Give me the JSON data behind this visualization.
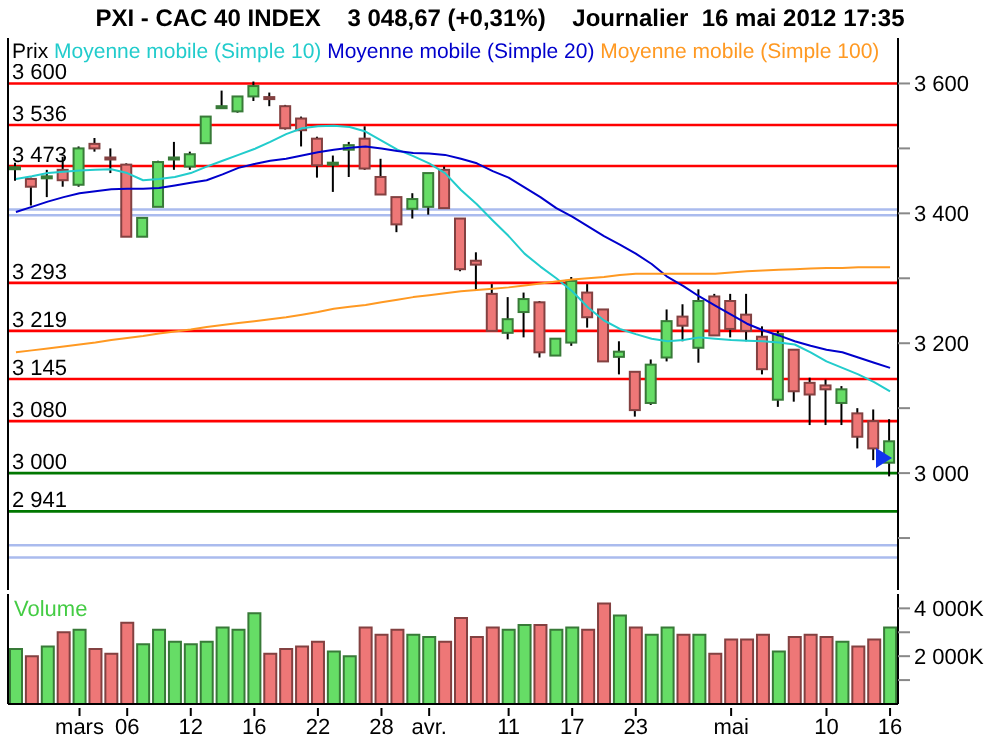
{
  "chart_data": [
    {
      "type": "candlestick",
      "title": "PXI - CAC 40 INDEX    3 048,67 (+0,31%)    Journalier  16 mai 2012 17:35",
      "legend_title": "Prix",
      "legend": "top left",
      "tick_labels": "y",
      "ohlc": [
        [
          3469,
          3478,
          3450,
          3471
        ],
        [
          3453,
          3455,
          3412,
          3441
        ],
        [
          3455,
          3467,
          3425,
          3457
        ],
        [
          3467,
          3487,
          3441,
          3451
        ],
        [
          3444,
          3503,
          3441,
          3500
        ],
        [
          3507,
          3516,
          3495,
          3500
        ],
        [
          3486,
          3500,
          3462,
          3484
        ],
        [
          3475,
          3477,
          3364,
          3364
        ],
        [
          3364,
          3393,
          3364,
          3393
        ],
        [
          3410,
          3481,
          3410,
          3479
        ],
        [
          3485,
          3510,
          3467,
          3486
        ],
        [
          3472,
          3495,
          3467,
          3491
        ],
        [
          3508,
          3549,
          3508,
          3549
        ],
        [
          3564,
          3589,
          3562,
          3565
        ],
        [
          3557,
          3580,
          3555,
          3580
        ],
        [
          3580,
          3603,
          3573,
          3596
        ],
        [
          3579,
          3586,
          3565,
          3578
        ],
        [
          3565,
          3567,
          3529,
          3531
        ],
        [
          3546,
          3549,
          3503,
          3528
        ],
        [
          3515,
          3518,
          3455,
          3474
        ],
        [
          3476,
          3489,
          3433,
          3478
        ],
        [
          3498,
          3510,
          3456,
          3505
        ],
        [
          3515,
          3534,
          3467,
          3469
        ],
        [
          3456,
          3484,
          3429,
          3429
        ],
        [
          3425,
          3425,
          3371,
          3383
        ],
        [
          3407,
          3431,
          3392,
          3422
        ],
        [
          3410,
          3462,
          3398,
          3462
        ],
        [
          3467,
          3472,
          3408,
          3408
        ],
        [
          3392,
          3392,
          3311,
          3314
        ],
        [
          3327,
          3340,
          3281,
          3321
        ],
        [
          3276,
          3291,
          3219,
          3219
        ],
        [
          3216,
          3271,
          3206,
          3237
        ],
        [
          3248,
          3278,
          3209,
          3268
        ],
        [
          3263,
          3265,
          3178,
          3186
        ],
        [
          3181,
          3207,
          3181,
          3207
        ],
        [
          3201,
          3302,
          3196,
          3296
        ],
        [
          3278,
          3291,
          3224,
          3240
        ],
        [
          3252,
          3252,
          3172,
          3172
        ],
        [
          3179,
          3203,
          3152,
          3187
        ],
        [
          3156,
          3156,
          3087,
          3097
        ],
        [
          3108,
          3175,
          3105,
          3167
        ],
        [
          3178,
          3252,
          3172,
          3234
        ],
        [
          3241,
          3260,
          3203,
          3227
        ],
        [
          3193,
          3283,
          3170,
          3265
        ],
        [
          3272,
          3276,
          3212,
          3212
        ],
        [
          3265,
          3276,
          3209,
          3222
        ],
        [
          3244,
          3276,
          3203,
          3219
        ],
        [
          3210,
          3226,
          3152,
          3160
        ],
        [
          3113,
          3219,
          3102,
          3214
        ],
        [
          3190,
          3190,
          3110,
          3126
        ],
        [
          3139,
          3147,
          3074,
          3121
        ],
        [
          3135,
          3144,
          3074,
          3129
        ],
        [
          3108,
          3134,
          3074,
          3129
        ],
        [
          3092,
          3100,
          3038,
          3056
        ],
        [
          3080,
          3098,
          3020,
          3038
        ],
        [
          3016,
          3083,
          2995,
          3049
        ]
      ],
      "colors": [
        "#66dd66",
        "#ee7777",
        "#66dd66",
        "#ee7777",
        "#66dd66",
        "#ee7777",
        "#ee7777",
        "#ee7777",
        "#66dd66",
        "#66dd66",
        "#66dd66",
        "#66dd66",
        "#66dd66",
        "#66dd66",
        "#66dd66",
        "#66dd66",
        "#ee7777",
        "#ee7777",
        "#ee7777",
        "#ee7777",
        "#66dd66",
        "#66dd66",
        "#ee7777",
        "#ee7777",
        "#ee7777",
        "#66dd66",
        "#66dd66",
        "#ee7777",
        "#ee7777",
        "#ee7777",
        "#ee7777",
        "#66dd66",
        "#66dd66",
        "#ee7777",
        "#66dd66",
        "#66dd66",
        "#ee7777",
        "#ee7777",
        "#66dd66",
        "#ee7777",
        "#66dd66",
        "#66dd66",
        "#ee7777",
        "#66dd66",
        "#ee7777",
        "#ee7777",
        "#ee7777",
        "#ee7777",
        "#66dd66",
        "#ee7777",
        "#ee7777",
        "#ee7777",
        "#66dd66",
        "#ee7777",
        "#ee7777",
        "#66dd66"
      ],
      "series": [
        {
          "type": "line",
          "name": "Moyenne mobile (Simple 10)",
          "color": "#22cccc",
          "values": [
            3453,
            3457,
            3462,
            3464,
            3466,
            3467,
            3468,
            3462,
            3451,
            3453,
            3456,
            3462,
            3472,
            3481,
            3490,
            3499,
            3510,
            3522,
            3531,
            3534,
            3535,
            3533,
            3526,
            3512,
            3498,
            3488,
            3477,
            3462,
            3436,
            3414,
            3389,
            3365,
            3338,
            3318,
            3300,
            3280,
            3255,
            3235,
            3222,
            3214,
            3207,
            3203,
            3205,
            3209,
            3207,
            3205,
            3204,
            3203,
            3201,
            3198,
            3186,
            3172,
            3162,
            3152,
            3140,
            3126
          ]
        },
        {
          "type": "line",
          "name": "Moyenne mobile (Simple 20)",
          "color": "#0000cc",
          "values": [
            3402,
            3410,
            3418,
            3425,
            3431,
            3434,
            3437,
            3438,
            3438,
            3439,
            3443,
            3447,
            3451,
            3460,
            3470,
            3476,
            3481,
            3484,
            3489,
            3494,
            3498,
            3501,
            3503,
            3500,
            3496,
            3493,
            3492,
            3490,
            3484,
            3477,
            3465,
            3455,
            3440,
            3425,
            3408,
            3395,
            3380,
            3365,
            3352,
            3338,
            3322,
            3302,
            3288,
            3272,
            3258,
            3244,
            3230,
            3220,
            3212,
            3203,
            3196,
            3190,
            3186,
            3178,
            3170,
            3162
          ]
        },
        {
          "type": "line",
          "name": "Moyenne mobile (Simple 100)",
          "color": "#ff9922",
          "values": [
            3186,
            3189,
            3192,
            3195,
            3198,
            3201,
            3205,
            3208,
            3211,
            3215,
            3218,
            3221,
            3225,
            3228,
            3231,
            3234,
            3237,
            3240,
            3244,
            3248,
            3253,
            3256,
            3259,
            3263,
            3267,
            3271,
            3274,
            3277,
            3280,
            3282,
            3284,
            3286,
            3289,
            3292,
            3295,
            3298,
            3300,
            3302,
            3305,
            3307,
            3307,
            3307,
            3307,
            3307,
            3307,
            3309,
            3311,
            3312,
            3313,
            3314,
            3315,
            3316,
            3316,
            3317,
            3317,
            3317
          ]
        }
      ],
      "ylim": [
        2820,
        3670
      ],
      "yticks": [
        {
          "value": 2900,
          "label": null
        },
        {
          "value": 3000,
          "label": "3 000"
        },
        {
          "value": 3100,
          "label": null
        },
        {
          "value": 3200,
          "label": "3 200"
        },
        {
          "value": 3300,
          "label": null
        },
        {
          "value": 3400,
          "label": "3 400"
        },
        {
          "value": 3500,
          "label": null
        },
        {
          "value": 3600,
          "label": "3 600"
        }
      ],
      "ref_lines": [
        {
          "axis": "y",
          "value": 3600,
          "label": "3 600",
          "color": "#ff0000"
        },
        {
          "axis": "y",
          "value": 3536,
          "label": "3 536",
          "color": "#ff0000"
        },
        {
          "axis": "y",
          "value": 3473,
          "label": "3 473",
          "color": "#ff0000"
        },
        {
          "axis": "y",
          "value": 3293,
          "label": "3 293",
          "color": "#ff0000"
        },
        {
          "axis": "y",
          "value": 3219,
          "label": "3 219",
          "color": "#ff0000"
        },
        {
          "axis": "y",
          "value": 3145,
          "label": "3 145",
          "color": "#ff0000"
        },
        {
          "axis": "y",
          "value": 3080,
          "label": "3 080",
          "color": "#ff0000"
        },
        {
          "axis": "y",
          "value": 3000,
          "label": "3 000",
          "color": "#007700"
        },
        {
          "axis": "y",
          "value": 2941,
          "label": "2 941",
          "color": "#007700"
        },
        {
          "axis": "y",
          "value": 3406,
          "label": null,
          "color": "#aabbee"
        },
        {
          "axis": "y",
          "value": 3397,
          "label": null,
          "color": "#aabbee"
        },
        {
          "axis": "y",
          "value": 2889,
          "label": null,
          "color": "#aabbee"
        },
        {
          "axis": "y",
          "value": 2870,
          "label": null,
          "color": "#aabbee"
        }
      ]
    },
    {
      "type": "bar",
      "title": "Volume",
      "categories": [
        null,
        null,
        null,
        null,
        "mars",
        null,
        null,
        "06",
        null,
        null,
        null,
        "12",
        null,
        null,
        null,
        "16",
        null,
        null,
        null,
        "22",
        null,
        null,
        null,
        "28",
        null,
        null,
        "avr.",
        null,
        null,
        null,
        null,
        "11",
        null,
        null,
        null,
        "17",
        null,
        null,
        null,
        "23",
        null,
        null,
        null,
        null,
        null,
        "mai",
        null,
        null,
        null,
        null,
        null,
        "10",
        null,
        null,
        null,
        "16"
      ],
      "values": [
        2300,
        2000,
        2400,
        3000,
        3100,
        2300,
        2100,
        3400,
        2500,
        3100,
        2600,
        2500,
        2600,
        3200,
        3100,
        3800,
        2100,
        2300,
        2400,
        2600,
        2200,
        2000,
        3200,
        2900,
        3100,
        2900,
        2800,
        2600,
        3600,
        2800,
        3200,
        3100,
        3300,
        3300,
        3100,
        3200,
        3100,
        4200,
        3700,
        3200,
        2900,
        3200,
        2900,
        2900,
        2100,
        2700,
        2700,
        2900,
        2200,
        2800,
        2900,
        2800,
        2600,
        2400,
        2700,
        3200
      ],
      "colors": [
        "#66dd66",
        "#ee7777",
        "#66dd66",
        "#ee7777",
        "#66dd66",
        "#ee7777",
        "#ee7777",
        "#ee7777",
        "#66dd66",
        "#66dd66",
        "#66dd66",
        "#66dd66",
        "#66dd66",
        "#66dd66",
        "#66dd66",
        "#66dd66",
        "#ee7777",
        "#ee7777",
        "#ee7777",
        "#ee7777",
        "#66dd66",
        "#66dd66",
        "#ee7777",
        "#ee7777",
        "#ee7777",
        "#66dd66",
        "#66dd66",
        "#ee7777",
        "#ee7777",
        "#ee7777",
        "#ee7777",
        "#66dd66",
        "#66dd66",
        "#ee7777",
        "#66dd66",
        "#66dd66",
        "#ee7777",
        "#ee7777",
        "#66dd66",
        "#ee7777",
        "#66dd66",
        "#66dd66",
        "#ee7777",
        "#66dd66",
        "#ee7777",
        "#ee7777",
        "#ee7777",
        "#ee7777",
        "#66dd66",
        "#ee7777",
        "#ee7777",
        "#ee7777",
        "#66dd66",
        "#ee7777",
        "#ee7777",
        "#66dd66"
      ],
      "ylim": [
        0,
        4600
      ],
      "yticks": [
        {
          "value": 1000,
          "label": null
        },
        {
          "value": 2000,
          "label": "2 000K"
        },
        {
          "value": 3000,
          "label": null
        },
        {
          "value": 4000,
          "label": "4 000K"
        }
      ]
    }
  ]
}
